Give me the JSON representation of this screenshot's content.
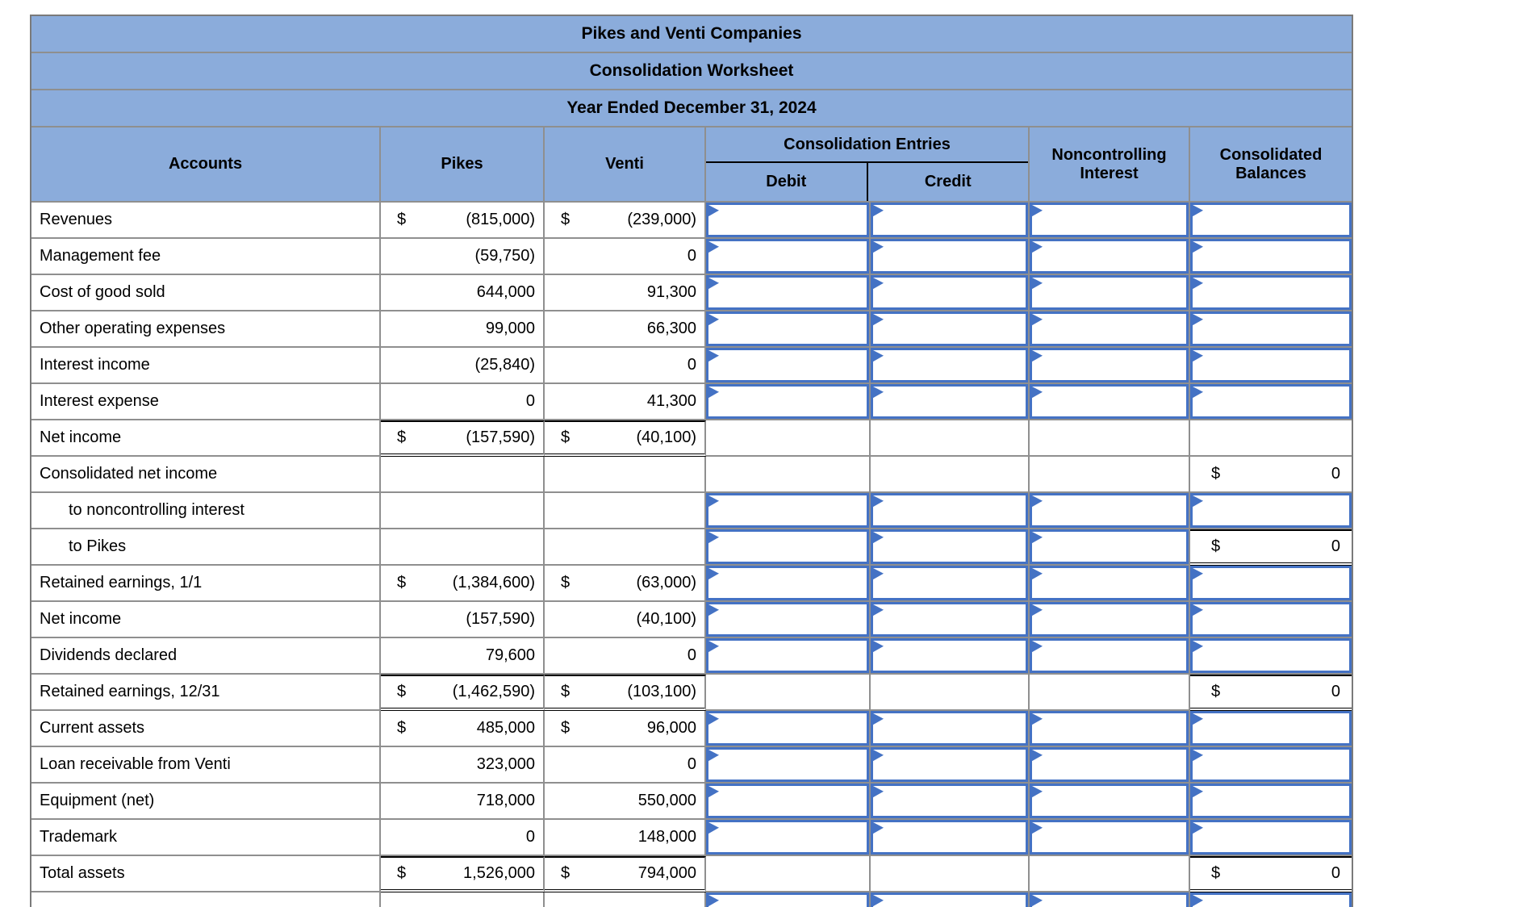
{
  "titles": {
    "company": "Pikes and Venti Companies",
    "worksheet": "Consolidation Worksheet",
    "period": "Year Ended December 31, 2024"
  },
  "header": {
    "accounts": "Accounts",
    "pikes": "Pikes",
    "venti": "Venti",
    "entries_group": "Consolidation Entries",
    "debit": "Debit",
    "credit": "Credit",
    "noncontrolling": "Noncontrolling Interest",
    "consolidated": "Consolidated Balances"
  },
  "colors": {
    "header_bg": "#8BACDB",
    "input_border": "#4472C4",
    "grid_line": "#8f8f8f"
  },
  "rows": [
    {
      "account": "Revenues",
      "indent": false,
      "pikes": {
        "d": "$",
        "v": "(815,000)"
      },
      "venti": {
        "d": "$",
        "v": "(239,000)"
      },
      "debit": "input",
      "credit": "input",
      "nci": "input",
      "consol": {
        "type": "input"
      }
    },
    {
      "account": "Management fee",
      "indent": false,
      "pikes": {
        "v": "(59,750)"
      },
      "venti": {
        "v": "0"
      },
      "debit": "input",
      "credit": "input",
      "nci": "input",
      "consol": {
        "type": "input"
      }
    },
    {
      "account": "Cost of good sold",
      "indent": false,
      "pikes": {
        "v": "644,000"
      },
      "venti": {
        "v": "91,300"
      },
      "debit": "input",
      "credit": "input",
      "nci": "input",
      "consol": {
        "type": "input"
      }
    },
    {
      "account": "Other operating expenses",
      "indent": false,
      "pikes": {
        "v": "99,000"
      },
      "venti": {
        "v": "66,300"
      },
      "debit": "input",
      "credit": "input",
      "nci": "input",
      "consol": {
        "type": "input"
      }
    },
    {
      "account": "Interest income",
      "indent": false,
      "pikes": {
        "v": "(25,840)"
      },
      "venti": {
        "v": "0"
      },
      "debit": "input",
      "credit": "input",
      "nci": "input",
      "consol": {
        "type": "input"
      }
    },
    {
      "account": "Interest expense",
      "indent": false,
      "pikes": {
        "v": "0"
      },
      "venti": {
        "v": "41,300"
      },
      "debit": "input",
      "credit": "input",
      "nci": "input",
      "consol": {
        "type": "input"
      }
    },
    {
      "account": "Net income",
      "indent": false,
      "pikes": {
        "d": "$",
        "v": "(157,590)",
        "total": true
      },
      "venti": {
        "d": "$",
        "v": "(40,100)",
        "total": true
      },
      "debit": "blank",
      "credit": "blank",
      "nci": "blank",
      "consol": {
        "type": "blank"
      }
    },
    {
      "account": "Consolidated net income",
      "indent": false,
      "pikes": null,
      "venti": null,
      "debit": "blank",
      "credit": "blank",
      "nci": "blank",
      "consol": {
        "type": "money",
        "d": "$",
        "v": "0",
        "total": false
      }
    },
    {
      "account": "to noncontrolling interest",
      "indent": true,
      "pikes": null,
      "venti": null,
      "debit": "input",
      "credit": "input",
      "nci": "input",
      "consol": {
        "type": "input"
      }
    },
    {
      "account": "to Pikes",
      "indent": true,
      "pikes": null,
      "venti": null,
      "debit": "input",
      "credit": "input",
      "nci": "input",
      "consol": {
        "type": "money",
        "d": "$",
        "v": "0",
        "total": true
      }
    },
    {
      "account": "Retained earnings, 1/1",
      "indent": false,
      "pikes": {
        "d": "$",
        "v": "(1,384,600)"
      },
      "venti": {
        "d": "$",
        "v": "(63,000)"
      },
      "debit": "input",
      "credit": "input",
      "nci": "input",
      "consol": {
        "type": "input"
      }
    },
    {
      "account": "Net income",
      "indent": false,
      "pikes": {
        "v": "(157,590)"
      },
      "venti": {
        "v": "(40,100)"
      },
      "debit": "input",
      "credit": "input",
      "nci": "input",
      "consol": {
        "type": "input"
      }
    },
    {
      "account": "Dividends declared",
      "indent": false,
      "pikes": {
        "v": "79,600"
      },
      "venti": {
        "v": "0"
      },
      "debit": "input",
      "credit": "input",
      "nci": "input",
      "consol": {
        "type": "input"
      }
    },
    {
      "account": "Retained earnings, 12/31",
      "indent": false,
      "pikes": {
        "d": "$",
        "v": "(1,462,590)",
        "total": true
      },
      "venti": {
        "d": "$",
        "v": "(103,100)",
        "total": true
      },
      "debit": "blank",
      "credit": "blank",
      "nci": "blank",
      "consol": {
        "type": "money",
        "d": "$",
        "v": "0",
        "total": true
      }
    },
    {
      "account": "Current assets",
      "indent": false,
      "pikes": {
        "d": "$",
        "v": "485,000"
      },
      "venti": {
        "d": "$",
        "v": "96,000"
      },
      "debit": "input",
      "credit": "input",
      "nci": "input",
      "consol": {
        "type": "input"
      }
    },
    {
      "account": "Loan receivable from Venti",
      "indent": false,
      "pikes": {
        "v": "323,000"
      },
      "venti": {
        "v": "0"
      },
      "debit": "input",
      "credit": "input",
      "nci": "input",
      "consol": {
        "type": "input"
      }
    },
    {
      "account": "Equipment (net)",
      "indent": false,
      "pikes": {
        "v": "718,000"
      },
      "venti": {
        "v": "550,000"
      },
      "debit": "input",
      "credit": "input",
      "nci": "input",
      "consol": {
        "type": "input"
      }
    },
    {
      "account": "Trademark",
      "indent": false,
      "pikes": {
        "v": "0"
      },
      "venti": {
        "v": "148,000"
      },
      "debit": "input",
      "credit": "input",
      "nci": "input",
      "consol": {
        "type": "input"
      }
    },
    {
      "account": "Total assets",
      "indent": false,
      "pikes": {
        "d": "$",
        "v": "1,526,000",
        "total": true
      },
      "venti": {
        "d": "$",
        "v": "794,000",
        "total": true
      },
      "debit": "blank",
      "credit": "blank",
      "nci": "blank",
      "consol": {
        "type": "money",
        "d": "$",
        "v": "0",
        "total": true
      }
    },
    {
      "account": "",
      "indent": false,
      "pikes": null,
      "venti": null,
      "debit": "input",
      "credit": "input",
      "nci": "input",
      "consol": {
        "type": "input"
      }
    }
  ]
}
